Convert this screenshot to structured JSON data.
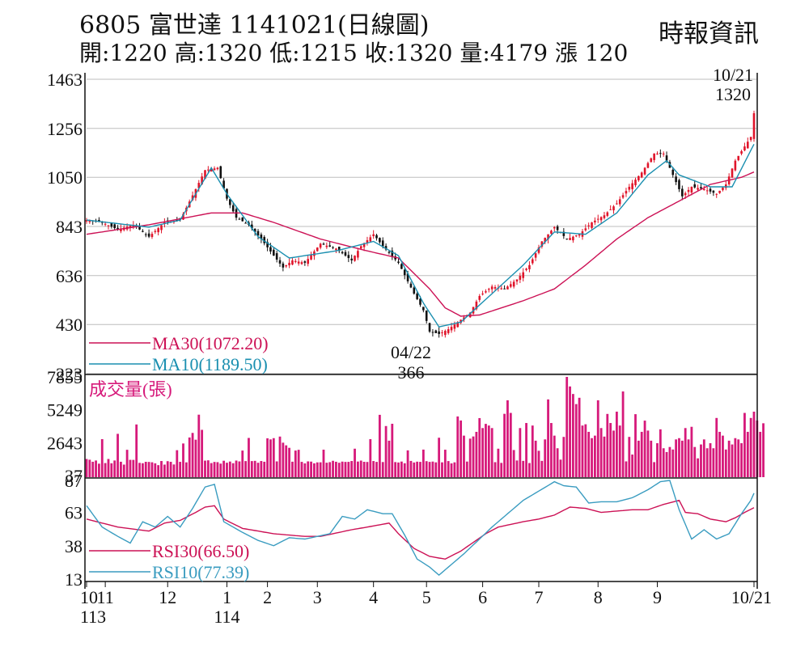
{
  "header": {
    "title": "6805  富世達 1141021(日線圖)",
    "ohlc": "開:1220 高:1320 低:1215 收:1320 量:4179 漲 120",
    "source": "時報資訊"
  },
  "colors": {
    "up": "#e0142a",
    "down": "#111111",
    "ma30": "#cc1155",
    "ma10": "#1a8fb0",
    "volume": "#d6197a",
    "rsi30": "#cc1155",
    "rsi10": "#3a9cc0",
    "grid": "#bdbdbd"
  },
  "chart_data": [
    {
      "type": "candlestick",
      "panel": "price",
      "yticks": [
        "1463",
        "1256",
        "1050",
        "843",
        "636",
        "430",
        "223"
      ],
      "ylim": [
        223,
        1463
      ],
      "grid": true,
      "annotations": {
        "high_date": "10/21",
        "high_value": "1320",
        "low_date": "04/22",
        "low_value": "366"
      },
      "legend": [
        {
          "key": "ma30",
          "label": "MA30(1072.20)"
        },
        {
          "key": "ma10",
          "label": "MA10(1189.50)"
        }
      ],
      "close_anchors": [
        [
          0,
          870
        ],
        [
          5,
          860
        ],
        [
          10,
          830
        ],
        [
          15,
          850
        ],
        [
          20,
          800
        ],
        [
          25,
          860
        ],
        [
          30,
          870
        ],
        [
          35,
          1000
        ],
        [
          38,
          1080
        ],
        [
          42,
          1090
        ],
        [
          45,
          960
        ],
        [
          48,
          880
        ],
        [
          52,
          850
        ],
        [
          56,
          790
        ],
        [
          60,
          720
        ],
        [
          63,
          670
        ],
        [
          66,
          700
        ],
        [
          70,
          690
        ],
        [
          75,
          770
        ],
        [
          80,
          750
        ],
        [
          85,
          700
        ],
        [
          88,
          760
        ],
        [
          92,
          810
        ],
        [
          95,
          760
        ],
        [
          100,
          690
        ],
        [
          105,
          560
        ],
        [
          108,
          490
        ],
        [
          110,
          400
        ],
        [
          113,
          390
        ],
        [
          116,
          410
        ],
        [
          119,
          440
        ],
        [
          123,
          480
        ],
        [
          126,
          550
        ],
        [
          130,
          590
        ],
        [
          134,
          580
        ],
        [
          138,
          620
        ],
        [
          142,
          680
        ],
        [
          146,
          780
        ],
        [
          150,
          840
        ],
        [
          154,
          790
        ],
        [
          158,
          810
        ],
        [
          162,
          860
        ],
        [
          166,
          890
        ],
        [
          170,
          940
        ],
        [
          174,
          1010
        ],
        [
          178,
          1070
        ],
        [
          182,
          1150
        ],
        [
          185,
          1150
        ],
        [
          188,
          1060
        ],
        [
          191,
          970
        ],
        [
          194,
          1010
        ],
        [
          198,
          1000
        ],
        [
          202,
          980
        ],
        [
          205,
          1020
        ],
        [
          208,
          1120
        ],
        [
          211,
          1180
        ],
        [
          213,
          1220
        ],
        [
          214,
          1320
        ]
      ],
      "ma30": [
        [
          0,
          810
        ],
        [
          20,
          850
        ],
        [
          40,
          900
        ],
        [
          50,
          900
        ],
        [
          60,
          860
        ],
        [
          75,
          790
        ],
        [
          90,
          740
        ],
        [
          100,
          710
        ],
        [
          110,
          580
        ],
        [
          115,
          500
        ],
        [
          120,
          465
        ],
        [
          126,
          470
        ],
        [
          140,
          530
        ],
        [
          150,
          580
        ],
        [
          160,
          680
        ],
        [
          170,
          790
        ],
        [
          180,
          880
        ],
        [
          190,
          950
        ],
        [
          200,
          1020
        ],
        [
          210,
          1050
        ],
        [
          214,
          1072.2
        ]
      ],
      "ma10": [
        [
          0,
          870
        ],
        [
          20,
          840
        ],
        [
          30,
          870
        ],
        [
          40,
          1090
        ],
        [
          45,
          980
        ],
        [
          55,
          800
        ],
        [
          65,
          710
        ],
        [
          80,
          740
        ],
        [
          92,
          780
        ],
        [
          100,
          720
        ],
        [
          108,
          520
        ],
        [
          113,
          420
        ],
        [
          120,
          440
        ],
        [
          130,
          560
        ],
        [
          140,
          680
        ],
        [
          150,
          820
        ],
        [
          160,
          810
        ],
        [
          170,
          900
        ],
        [
          180,
          1060
        ],
        [
          186,
          1120
        ],
        [
          190,
          1060
        ],
        [
          200,
          1010
        ],
        [
          207,
          1010
        ],
        [
          214,
          1189.5
        ]
      ]
    },
    {
      "type": "bar",
      "panel": "volume",
      "title": "成交量(張)",
      "yticks": [
        "7855",
        "5249",
        "2643",
        "37"
      ],
      "ylim": [
        37,
        7855
      ],
      "values": [
        1350,
        1290,
        1130,
        1230,
        978,
        2921,
        1026,
        1350,
        1009,
        1231,
        3342,
        1130,
        904,
        2078,
        1282,
        1278,
        4085,
        1042,
        1014,
        1126,
        1116,
        1088,
        1005,
        861,
        1189,
        904,
        1176,
        1125,
        915,
        2046,
        1123,
        2578,
        1084,
        3053,
        3416,
        2878,
        4861,
        3659,
        1219,
        1244,
        1025,
        1115,
        1097,
        982,
        1209,
        1052,
        1147,
        1014,
        1225,
        1157,
        2017,
        1183,
        3016,
        1183,
        1201,
        1051,
        1189,
        1130,
        2987,
        2902,
        3000,
        1158,
        3126,
        2641,
        2431,
        2234,
        1135,
        2017,
        2078,
        1121,
        1000,
        1159,
        1141,
        1006,
        1080,
        1087,
        2087,
        1054,
        1098,
        1206,
        1130,
        1051,
        1141,
        1118,
        1122,
        1189,
        2165,
        1146,
        1223,
        1126,
        1113,
        2923,
        1187,
        1120,
        4849,
        1107,
        3960,
        2800,
        4140,
        1104,
        1073,
        1145,
        1011,
        2033,
        1197,
        1072,
        1137,
        1120,
        2093,
        1176,
        1118,
        1144,
        1083,
        3033,
        1083,
        2085,
        1185,
        1000,
        1083,
        4719,
        4400,
        3200,
        1145,
        2962,
        3134,
        3500,
        4590,
        3800,
        4132,
        4000,
        3800,
        1097,
        2165,
        1040,
        4929,
        6000,
        5000,
        2060,
        1231,
        3800,
        1200,
        4200,
        1028,
        4000,
        2800,
        2000,
        1200,
        2900,
        6070,
        4200,
        3200,
        2200,
        1300,
        3100,
        7855,
        7097,
        6500,
        5700,
        6200,
        4000,
        4100,
        3500,
        3000,
        3200,
        6000,
        3800,
        3124,
        4920,
        4200,
        3600,
        5100,
        4000,
        6700,
        1160,
        3100,
        1700,
        4900,
        2800,
        3500,
        4390,
        3600,
        2800,
        1100,
        2600,
        3700,
        2200,
        1900,
        2300,
        2100,
        2900,
        3000,
        2800,
        3800,
        2900,
        3900,
        2300,
        1400,
        2500,
        2900,
        2200,
        2600,
        2200,
        4600,
        3500,
        3200,
        2100,
        2800,
        2500,
        3000,
        2900,
        2600,
        5000,
        3500,
        4600,
        5100,
        4400,
        3500,
        4179
      ]
    },
    {
      "type": "line",
      "panel": "rsi",
      "yticks": [
        "87",
        "63",
        "38",
        "13"
      ],
      "ylim": [
        13,
        87
      ],
      "legend": [
        {
          "key": "rsi30",
          "label": "RSI30(66.50)"
        },
        {
          "key": "rsi10",
          "label": "RSI10(77.39)"
        }
      ],
      "series": [
        {
          "key": "rsi30",
          "name": "RSI30(66.50)",
          "points": [
            [
              0,
              58
            ],
            [
              10,
              52
            ],
            [
              20,
              49
            ],
            [
              25,
              55
            ],
            [
              30,
              57
            ],
            [
              35,
              63
            ],
            [
              38,
              67
            ],
            [
              41,
              68
            ],
            [
              44,
              58
            ],
            [
              50,
              51
            ],
            [
              60,
              47
            ],
            [
              70,
              45
            ],
            [
              75,
              45
            ],
            [
              85,
              50
            ],
            [
              90,
              52
            ],
            [
              97,
              55
            ],
            [
              100,
              47
            ],
            [
              105,
              36
            ],
            [
              110,
              30
            ],
            [
              115,
              28
            ],
            [
              120,
              34
            ],
            [
              128,
              47
            ],
            [
              132,
              52
            ],
            [
              140,
              56
            ],
            [
              145,
              58
            ],
            [
              150,
              61
            ],
            [
              155,
              67
            ],
            [
              160,
              66
            ],
            [
              165,
              63
            ],
            [
              170,
              64
            ],
            [
              175,
              65
            ],
            [
              180,
              65
            ],
            [
              185,
              69
            ],
            [
              190,
              72
            ],
            [
              192,
              63
            ],
            [
              196,
              62
            ],
            [
              200,
              58
            ],
            [
              205,
              56
            ],
            [
              208,
              59
            ],
            [
              211,
              63
            ],
            [
              214,
              66.5
            ]
          ]
        },
        {
          "key": "rsi10",
          "name": "RSI10(77.39)",
          "points": [
            [
              0,
              68
            ],
            [
              5,
              52
            ],
            [
              10,
              45
            ],
            [
              14,
              40
            ],
            [
              18,
              56
            ],
            [
              22,
              52
            ],
            [
              26,
              60
            ],
            [
              30,
              52
            ],
            [
              34,
              66
            ],
            [
              38,
              82
            ],
            [
              41,
              84
            ],
            [
              44,
              56
            ],
            [
              50,
              48
            ],
            [
              55,
              42
            ],
            [
              60,
              38
            ],
            [
              65,
              44
            ],
            [
              70,
              43
            ],
            [
              78,
              47
            ],
            [
              82,
              60
            ],
            [
              86,
              58
            ],
            [
              90,
              65
            ],
            [
              95,
              62
            ],
            [
              98,
              62
            ],
            [
              102,
              46
            ],
            [
              106,
              28
            ],
            [
              110,
              22
            ],
            [
              113,
              16
            ],
            [
              117,
              24
            ],
            [
              121,
              32
            ],
            [
              126,
              43
            ],
            [
              130,
              52
            ],
            [
              134,
              60
            ],
            [
              140,
              72
            ],
            [
              145,
              79
            ],
            [
              150,
              86
            ],
            [
              153,
              83
            ],
            [
              157,
              82
            ],
            [
              161,
              70
            ],
            [
              165,
              71
            ],
            [
              170,
              71
            ],
            [
              175,
              74
            ],
            [
              180,
              80
            ],
            [
              184,
              86
            ],
            [
              187,
              87
            ],
            [
              190,
              65
            ],
            [
              194,
              43
            ],
            [
              198,
              50
            ],
            [
              202,
              43
            ],
            [
              206,
              47
            ],
            [
              210,
              62
            ],
            [
              213,
              72
            ],
            [
              214,
              77.39
            ]
          ]
        }
      ]
    }
  ],
  "xaxis": {
    "ticks": [
      {
        "label": "10",
        "i": 0
      },
      {
        "label": "11",
        "i": 6
      },
      {
        "label": "12",
        "i": 26
      },
      {
        "label": "1",
        "i": 45
      },
      {
        "label": "2",
        "i": 58
      },
      {
        "label": "3",
        "i": 74
      },
      {
        "label": "4",
        "i": 92
      },
      {
        "label": "5",
        "i": 109
      },
      {
        "label": "6",
        "i": 127
      },
      {
        "label": "7",
        "i": 145
      },
      {
        "label": "8",
        "i": 164
      },
      {
        "label": "9",
        "i": 183
      },
      {
        "label": "10/21",
        "i": 214
      }
    ],
    "sublabels": [
      {
        "label": "113",
        "i": 0
      },
      {
        "label": "114",
        "i": 45
      }
    ]
  }
}
